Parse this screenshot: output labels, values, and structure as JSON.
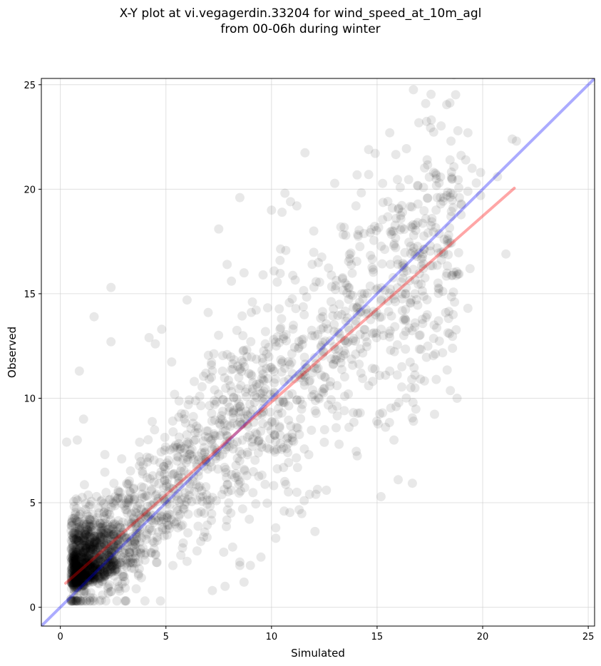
{
  "chart_data": {
    "type": "scatter",
    "title_line1": "X-Y plot at vi.vegagerdin.33204 for wind_speed_at_10m_agl",
    "title_line2": "from 00-06h during winter",
    "xlabel": "Simulated",
    "ylabel": "Observed",
    "xlim": [
      -0.9,
      25.3
    ],
    "ylim": [
      -0.9,
      25.3
    ],
    "xticks": [
      0,
      5,
      10,
      15,
      20,
      25
    ],
    "yticks": [
      0,
      5,
      10,
      15,
      20,
      25
    ],
    "grid": true,
    "point_color": "#000000",
    "point_opacity": 0.09,
    "identity_line": {
      "from": [
        -0.9,
        -0.9
      ],
      "to": [
        25.3,
        25.3
      ],
      "color": "#0000ff",
      "opacity": 0.33
    },
    "fit_line": {
      "from": [
        0.25,
        1.15
      ],
      "to": [
        21.5,
        20.05
      ],
      "color": "#ff0000",
      "opacity": 0.35
    },
    "highlighted_points": [
      [
        17.3,
        24.1
      ],
      [
        15.6,
        22.7
      ],
      [
        19.3,
        22.7
      ],
      [
        21.4,
        22.4
      ],
      [
        21.6,
        22.3
      ],
      [
        18.5,
        22.3
      ],
      [
        14.6,
        21.9
      ],
      [
        19.2,
        21.4
      ],
      [
        19.5,
        21.0
      ],
      [
        19.9,
        20.8
      ],
      [
        20.7,
        20.6
      ],
      [
        14.6,
        20.7
      ],
      [
        17.8,
        20.5
      ],
      [
        19.7,
        20.3
      ],
      [
        19.3,
        19.9
      ],
      [
        19.9,
        19.7
      ],
      [
        18.3,
        19.7
      ],
      [
        11.2,
        19.2
      ],
      [
        14.0,
        19.2
      ],
      [
        8.5,
        19.6
      ],
      [
        10.9,
        19.4
      ],
      [
        18.9,
        19.6
      ],
      [
        10.0,
        19.0
      ],
      [
        10.5,
        18.9
      ],
      [
        7.5,
        18.1
      ],
      [
        15.9,
        18.6
      ],
      [
        16.2,
        18.9
      ],
      [
        17.6,
        18.6
      ],
      [
        18.5,
        18.7
      ],
      [
        16.7,
        18.3
      ],
      [
        21.1,
        16.9
      ],
      [
        19.4,
        16.2
      ],
      [
        19.3,
        14.3
      ],
      [
        18.6,
        14.0
      ],
      [
        17.0,
        13.0
      ],
      [
        17.7,
        13.5
      ],
      [
        15.8,
        8.0
      ],
      [
        16.0,
        6.1
      ],
      [
        16.7,
        9.8
      ],
      [
        15.9,
        9.6
      ],
      [
        16.6,
        10.5
      ],
      [
        17.8,
        10.9
      ],
      [
        15.4,
        11.1
      ],
      [
        14.9,
        11.4
      ],
      [
        15.6,
        11.3
      ],
      [
        12.6,
        5.6
      ],
      [
        11.2,
        5.5
      ],
      [
        11.8,
        5.4
      ],
      [
        10.6,
        4.6
      ],
      [
        10.2,
        3.3
      ],
      [
        10.2,
        3.8
      ],
      [
        9.5,
        2.4
      ],
      [
        9.0,
        2.0
      ],
      [
        8.5,
        2.0
      ],
      [
        8.7,
        1.2
      ],
      [
        7.2,
        0.8
      ],
      [
        7.8,
        1.0
      ],
      [
        2.4,
        15.3
      ],
      [
        1.6,
        13.9
      ],
      [
        2.4,
        12.7
      ],
      [
        4.8,
        13.3
      ],
      [
        4.2,
        12.9
      ],
      [
        4.5,
        12.6
      ],
      [
        6.0,
        14.7
      ],
      [
        7.0,
        14.1
      ],
      [
        0.9,
        11.3
      ],
      [
        0.3,
        7.9
      ],
      [
        0.8,
        8.0
      ],
      [
        1.1,
        9.0
      ],
      [
        7.9,
        16.4
      ],
      [
        8.1,
        15.6
      ],
      [
        8.7,
        16.0
      ],
      [
        9.6,
        15.9
      ],
      [
        12.0,
        18.0
      ],
      [
        12.1,
        5.4
      ],
      [
        13.2,
        7.8
      ],
      [
        14.2,
        9.3
      ],
      [
        14.6,
        10.6
      ]
    ]
  }
}
